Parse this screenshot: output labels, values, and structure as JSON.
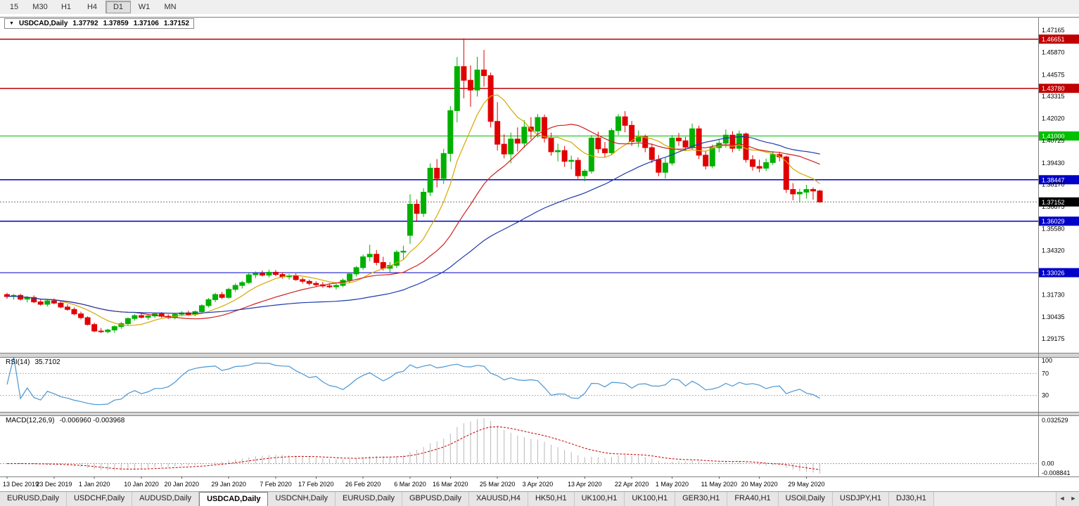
{
  "toolbar": {
    "timeframes": [
      {
        "label": "15",
        "active": false
      },
      {
        "label": "M30",
        "active": false
      },
      {
        "label": "H1",
        "active": false
      },
      {
        "label": "H4",
        "active": false
      },
      {
        "label": "D1",
        "active": true
      },
      {
        "label": "W1",
        "active": false
      },
      {
        "label": "MN",
        "active": false
      }
    ]
  },
  "title_bar": {
    "dropdown_icon": "▼",
    "symbol": "USDCAD,Daily",
    "open": "1.37792",
    "high": "1.37859",
    "low": "1.37106",
    "close": "1.37152"
  },
  "chart_data": {
    "type": "candlestick",
    "symbol": "USDCAD",
    "period": "Daily",
    "y_axis": {
      "range": [
        1.2835,
        1.4795
      ],
      "ticks": [
        "1.47165",
        "1.45870",
        "1.44575",
        "1.43315",
        "1.42020",
        "1.40725",
        "1.39430",
        "1.38170",
        "1.36875",
        "1.35580",
        "1.34320",
        "1.31730",
        "1.30435",
        "1.29175"
      ]
    },
    "x_axis": {
      "labels": [
        "13 Dec 2019",
        "23 Dec 2019",
        "1 Jan 2020",
        "10 Jan 2020",
        "20 Jan 2020",
        "29 Jan 2020",
        "7 Feb 2020",
        "17 Feb 2020",
        "26 Feb 2020",
        "6 Mar 2020",
        "16 Mar 2020",
        "25 Mar 2020",
        "3 Apr 2020",
        "13 Apr 2020",
        "22 Apr 2020",
        "1 May 2020",
        "11 May 2020",
        "20 May 2020",
        "29 May 2020"
      ]
    },
    "levels": [
      {
        "label": "1.46651",
        "value": 1.46651,
        "color": "#c00000"
      },
      {
        "label": "1.43780",
        "value": 1.4378,
        "color": "#c00000"
      },
      {
        "label": "1.41000",
        "value": 1.41,
        "color": "#00c000"
      },
      {
        "label": "1.38447",
        "value": 1.38447,
        "color": "#0000c8"
      },
      {
        "label": "1.36029",
        "value": 1.36029,
        "color": "#0000c8"
      },
      {
        "label": "1.33026",
        "value": 1.33026,
        "color": "#0000c8"
      }
    ],
    "current_price": {
      "label": "1.37152",
      "value": 1.37152,
      "color": "#000000"
    },
    "candle_colors": {
      "up": "#00b000",
      "down": "#e00000"
    },
    "moving_averages": [
      {
        "name": "ma-fast",
        "period": 8,
        "color": "#d4a800"
      },
      {
        "name": "ma-medium",
        "period": 20,
        "color": "#d02020"
      },
      {
        "name": "ma-slow",
        "period": 45,
        "color": "#1f3bad"
      }
    ],
    "candles": [
      [
        1.3175,
        1.3185,
        1.315,
        1.3163
      ],
      [
        1.3163,
        1.3178,
        1.3145,
        1.317
      ],
      [
        1.317,
        1.318,
        1.314,
        1.3148
      ],
      [
        1.3148,
        1.3165,
        1.313,
        1.3158
      ],
      [
        1.3158,
        1.317,
        1.3125,
        1.3132
      ],
      [
        1.3132,
        1.315,
        1.311,
        1.3118
      ],
      [
        1.3118,
        1.3145,
        1.3105,
        1.3138
      ],
      [
        1.3138,
        1.3152,
        1.3118,
        1.3125
      ],
      [
        1.3125,
        1.3135,
        1.3095,
        1.3102
      ],
      [
        1.3102,
        1.3118,
        1.308,
        1.3088
      ],
      [
        1.3088,
        1.31,
        1.3055,
        1.3062
      ],
      [
        1.3062,
        1.3075,
        1.303,
        1.304
      ],
      [
        1.304,
        1.3048,
        1.2995,
        1.3
      ],
      [
        1.3,
        1.301,
        1.2955,
        1.2962
      ],
      [
        1.2962,
        1.298,
        1.295,
        1.2958
      ],
      [
        1.2958,
        1.2975,
        1.2948,
        1.2968
      ],
      [
        1.2968,
        1.2995,
        1.2952,
        1.2988
      ],
      [
        1.2988,
        1.3015,
        1.2975,
        1.3005
      ],
      [
        1.3005,
        1.3042,
        1.2995,
        1.3035
      ],
      [
        1.3035,
        1.306,
        1.3022,
        1.3052
      ],
      [
        1.3052,
        1.3062,
        1.3035,
        1.3042
      ],
      [
        1.3042,
        1.3058,
        1.3028,
        1.305
      ],
      [
        1.305,
        1.307,
        1.3038,
        1.3062
      ],
      [
        1.3062,
        1.3072,
        1.304,
        1.3048
      ],
      [
        1.3048,
        1.306,
        1.3032,
        1.304
      ],
      [
        1.304,
        1.3068,
        1.303,
        1.306
      ],
      [
        1.306,
        1.3078,
        1.3048,
        1.3068
      ],
      [
        1.3068,
        1.308,
        1.305,
        1.3058
      ],
      [
        1.3058,
        1.3082,
        1.3048,
        1.3075
      ],
      [
        1.3075,
        1.3118,
        1.3065,
        1.311
      ],
      [
        1.311,
        1.3155,
        1.31,
        1.3145
      ],
      [
        1.3145,
        1.3185,
        1.313,
        1.3175
      ],
      [
        1.3175,
        1.319,
        1.3148,
        1.3158
      ],
      [
        1.3158,
        1.3215,
        1.315,
        1.3205
      ],
      [
        1.3205,
        1.324,
        1.319,
        1.3228
      ],
      [
        1.3228,
        1.3255,
        1.321,
        1.3245
      ],
      [
        1.3245,
        1.3302,
        1.3235,
        1.329
      ],
      [
        1.329,
        1.331,
        1.327,
        1.3298
      ],
      [
        1.3298,
        1.3315,
        1.328,
        1.3288
      ],
      [
        1.3288,
        1.332,
        1.3275,
        1.3305
      ],
      [
        1.3305,
        1.3318,
        1.3282,
        1.3292
      ],
      [
        1.3292,
        1.3305,
        1.3268,
        1.3278
      ],
      [
        1.3278,
        1.3295,
        1.3262,
        1.3285
      ],
      [
        1.3285,
        1.3298,
        1.3255,
        1.3262
      ],
      [
        1.3262,
        1.3275,
        1.324,
        1.3252
      ],
      [
        1.3252,
        1.3262,
        1.3228,
        1.324
      ],
      [
        1.324,
        1.3252,
        1.3222,
        1.3232
      ],
      [
        1.3232,
        1.3248,
        1.3215,
        1.3225
      ],
      [
        1.3225,
        1.324,
        1.3212,
        1.322
      ],
      [
        1.322,
        1.3238,
        1.3205,
        1.3228
      ],
      [
        1.3228,
        1.3268,
        1.3218,
        1.3258
      ],
      [
        1.3258,
        1.3305,
        1.3245,
        1.3295
      ],
      [
        1.3295,
        1.3342,
        1.328,
        1.3332
      ],
      [
        1.3332,
        1.3408,
        1.332,
        1.3395
      ],
      [
        1.3395,
        1.3465,
        1.337,
        1.341
      ],
      [
        1.341,
        1.3435,
        1.3345,
        1.3362
      ],
      [
        1.3362,
        1.3395,
        1.3315,
        1.3328
      ],
      [
        1.3328,
        1.3365,
        1.3305,
        1.3345
      ],
      [
        1.3345,
        1.3435,
        1.333,
        1.3422
      ],
      [
        1.3422,
        1.346,
        1.3382,
        1.3428
      ],
      [
        1.352,
        1.376,
        1.347,
        1.3702
      ],
      [
        1.3702,
        1.373,
        1.3605,
        1.3648
      ],
      [
        1.3648,
        1.3795,
        1.3628,
        1.3772
      ],
      [
        1.3772,
        1.394,
        1.375,
        1.3912
      ],
      [
        1.3912,
        1.3965,
        1.38,
        1.3852
      ],
      [
        1.3852,
        1.4025,
        1.382,
        1.3998
      ],
      [
        1.3998,
        1.4275,
        1.395,
        1.4248
      ],
      [
        1.4248,
        1.456,
        1.418,
        1.4505
      ],
      [
        1.4505,
        1.4669,
        1.432,
        1.4425
      ],
      [
        1.4425,
        1.4512,
        1.427,
        1.4368
      ],
      [
        1.4368,
        1.4562,
        1.433,
        1.4485
      ],
      [
        1.4485,
        1.4602,
        1.4388,
        1.4452
      ],
      [
        1.4452,
        1.447,
        1.415,
        1.4185
      ],
      [
        1.4185,
        1.4298,
        1.4015,
        1.4052
      ],
      [
        1.4052,
        1.411,
        1.397,
        1.3995
      ],
      [
        1.3995,
        1.412,
        1.394,
        1.4082
      ],
      [
        1.4082,
        1.415,
        1.401,
        1.4058
      ],
      [
        1.4058,
        1.4192,
        1.403,
        1.4152
      ],
      [
        1.4152,
        1.421,
        1.408,
        1.4128
      ],
      [
        1.4128,
        1.4228,
        1.4092,
        1.4208
      ],
      [
        1.4208,
        1.4225,
        1.4062,
        1.4088
      ],
      [
        1.4088,
        1.412,
        1.3985,
        1.4008
      ],
      [
        1.4008,
        1.4055,
        1.3952,
        1.4015
      ],
      [
        1.4015,
        1.4042,
        1.392,
        1.3952
      ],
      [
        1.3952,
        1.3985,
        1.3905,
        1.3958
      ],
      [
        1.3958,
        1.3975,
        1.385,
        1.3868
      ],
      [
        1.3868,
        1.3905,
        1.3835,
        1.3895
      ],
      [
        1.3895,
        1.4105,
        1.388,
        1.4088
      ],
      [
        1.4088,
        1.4125,
        1.4,
        1.4025
      ],
      [
        1.4025,
        1.4065,
        1.3975,
        1.4002
      ],
      [
        1.4002,
        1.4145,
        1.399,
        1.4132
      ],
      [
        1.4132,
        1.4228,
        1.4105,
        1.4212
      ],
      [
        1.4212,
        1.4245,
        1.4122,
        1.4162
      ],
      [
        1.4162,
        1.4188,
        1.4042,
        1.4068
      ],
      [
        1.4068,
        1.4132,
        1.4035,
        1.4095
      ],
      [
        1.4095,
        1.4108,
        1.4005,
        1.4032
      ],
      [
        1.4032,
        1.4055,
        1.3942,
        1.3962
      ],
      [
        1.3962,
        1.399,
        1.3865,
        1.3888
      ],
      [
        1.3888,
        1.3972,
        1.3852,
        1.3942
      ],
      [
        1.3942,
        1.4105,
        1.3928,
        1.4088
      ],
      [
        1.4088,
        1.4118,
        1.4042,
        1.4072
      ],
      [
        1.4072,
        1.4095,
        1.4012,
        1.4035
      ],
      [
        1.4035,
        1.4172,
        1.4022,
        1.4142
      ],
      [
        1.4142,
        1.416,
        1.3965,
        1.3988
      ],
      [
        1.3988,
        1.4015,
        1.3905,
        1.3925
      ],
      [
        1.3925,
        1.405,
        1.3912,
        1.4032
      ],
      [
        1.4032,
        1.4082,
        1.4005,
        1.4058
      ],
      [
        1.4058,
        1.4138,
        1.4032,
        1.4105
      ],
      [
        1.4105,
        1.4128,
        1.4005,
        1.4028
      ],
      [
        1.4028,
        1.4132,
        1.4012,
        1.4112
      ],
      [
        1.4112,
        1.412,
        1.3945,
        1.3962
      ],
      [
        1.3962,
        1.3988,
        1.3898,
        1.3922
      ],
      [
        1.3922,
        1.3962,
        1.3888,
        1.3912
      ],
      [
        1.3912,
        1.3968,
        1.3895,
        1.3945
      ],
      [
        1.3945,
        1.4012,
        1.3932,
        1.3992
      ],
      [
        1.3992,
        1.4008,
        1.3952,
        1.3978
      ],
      [
        1.3978,
        1.3985,
        1.3768,
        1.3788
      ],
      [
        1.3788,
        1.3825,
        1.3725,
        1.3762
      ],
      [
        1.3762,
        1.3792,
        1.3712,
        1.3772
      ],
      [
        1.3772,
        1.3815,
        1.3735,
        1.3788
      ],
      [
        1.3788,
        1.38,
        1.3728,
        1.3779
      ],
      [
        1.37792,
        1.37859,
        1.37106,
        1.37152
      ]
    ],
    "indicators": [
      {
        "name": "RSI",
        "label": "RSI(14)",
        "value_label": "35.7102",
        "period": 14,
        "line_color": "#4a96d2",
        "ticks": [
          "100",
          "70",
          "30"
        ],
        "guide_levels": [
          70,
          30
        ],
        "range": [
          0,
          100
        ]
      },
      {
        "name": "MACD",
        "label": "MACD(12,26,9)",
        "value_labels": "-0.006960 -0.003968",
        "fast": 12,
        "slow": 26,
        "signal": 9,
        "histogram_color": "#b8b8b8",
        "signal_color": "#c00000",
        "ticks": {
          "top": "0.032529",
          "zero": "0.00",
          "bottom": "-0.008841"
        }
      }
    ]
  },
  "tabs": {
    "items": [
      {
        "label": "EURUSD,Daily",
        "active": false
      },
      {
        "label": "USDCHF,Daily",
        "active": false
      },
      {
        "label": "AUDUSD,Daily",
        "active": false
      },
      {
        "label": "USDCAD,Daily",
        "active": true
      },
      {
        "label": "USDCNH,Daily",
        "active": false
      },
      {
        "label": "EURUSD,Daily",
        "active": false
      },
      {
        "label": "GBPUSD,Daily",
        "active": false
      },
      {
        "label": "XAUUSD,H4",
        "active": false
      },
      {
        "label": "HK50,H1",
        "active": false
      },
      {
        "label": "UK100,H1",
        "active": false
      },
      {
        "label": "UK100,H1",
        "active": false
      },
      {
        "label": "GER30,H1",
        "active": false
      },
      {
        "label": "FRA40,H1",
        "active": false
      },
      {
        "label": "USOil,Daily",
        "active": false
      },
      {
        "label": "USDJPY,H1",
        "active": false
      },
      {
        "label": "DJ30,H1",
        "active": false
      }
    ],
    "scroll_left": "◄",
    "scroll_right": "►"
  }
}
